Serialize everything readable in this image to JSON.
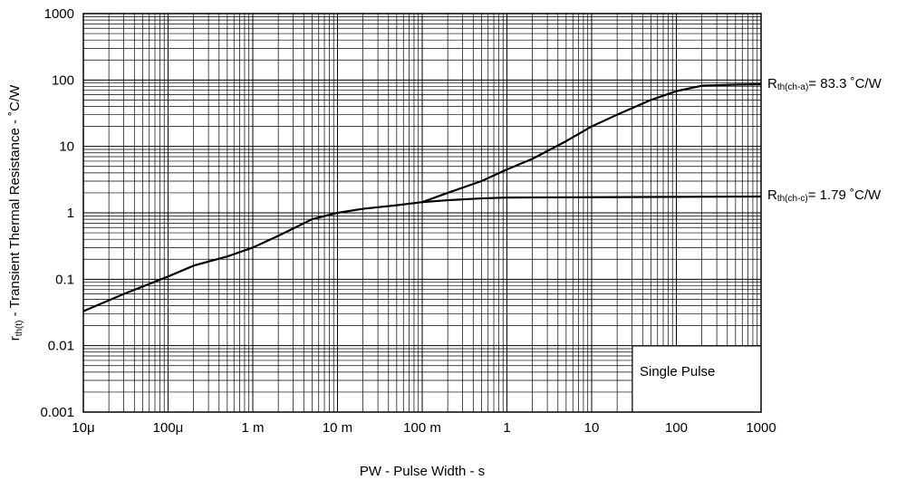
{
  "chart_data": {
    "type": "line",
    "x_scale": "log",
    "y_scale": "log",
    "xlim": [
      1e-05,
      1000
    ],
    "ylim": [
      0.001,
      1000
    ],
    "grid": true,
    "xlabel": "PW - Pulse Width - s",
    "ylabel_main": "r",
    "ylabel_sub": "th(t)",
    "ylabel_rest": " - Transient Thermal Resistance - ˚C/W",
    "x_ticks": [
      {
        "value": 1e-05,
        "label": "10μ"
      },
      {
        "value": 0.0001,
        "label": "100μ"
      },
      {
        "value": 0.001,
        "label": "1 m"
      },
      {
        "value": 0.01,
        "label": "10 m"
      },
      {
        "value": 0.1,
        "label": "100 m"
      },
      {
        "value": 1,
        "label": "1"
      },
      {
        "value": 10,
        "label": "10"
      },
      {
        "value": 100,
        "label": "100"
      },
      {
        "value": 1000,
        "label": "1000"
      }
    ],
    "y_ticks": [
      {
        "value": 0.001,
        "label": "0.001"
      },
      {
        "value": 0.01,
        "label": "0.01"
      },
      {
        "value": 0.1,
        "label": "0.1"
      },
      {
        "value": 1,
        "label": "1"
      },
      {
        "value": 10,
        "label": "10"
      },
      {
        "value": 100,
        "label": "100"
      },
      {
        "value": 1000,
        "label": "1000"
      }
    ],
    "series": [
      {
        "points": [
          [
            1e-05,
            0.033
          ],
          [
            3e-05,
            0.06
          ],
          [
            0.0001,
            0.11
          ],
          [
            0.0002,
            0.16
          ],
          [
            0.0005,
            0.22
          ],
          [
            0.001,
            0.3
          ],
          [
            0.002,
            0.45
          ],
          [
            0.005,
            0.8
          ],
          [
            0.01,
            1.0
          ],
          [
            0.02,
            1.15
          ],
          [
            0.05,
            1.3
          ],
          [
            0.1,
            1.45
          ],
          [
            0.2,
            1.55
          ],
          [
            0.5,
            1.65
          ],
          [
            1,
            1.7
          ],
          [
            10,
            1.72
          ],
          [
            100,
            1.74
          ],
          [
            1000,
            1.76
          ]
        ]
      },
      {
        "points": [
          [
            0.1,
            1.45
          ],
          [
            0.2,
            2.0
          ],
          [
            0.5,
            3.0
          ],
          [
            1,
            4.5
          ],
          [
            2,
            6.5
          ],
          [
            5,
            12
          ],
          [
            10,
            20
          ],
          [
            20,
            30
          ],
          [
            50,
            50
          ],
          [
            100,
            68
          ],
          [
            200,
            82
          ],
          [
            500,
            85
          ],
          [
            1000,
            86
          ]
        ]
      }
    ],
    "annotations": [
      {
        "main": "R",
        "sub": "th(ch-a)",
        "rest": "= 83.3 ˚C/W"
      },
      {
        "main": "R",
        "sub": "th(ch-c)",
        "rest": "= 1.79 ˚C/W"
      }
    ],
    "inset_label": "Single Pulse"
  }
}
